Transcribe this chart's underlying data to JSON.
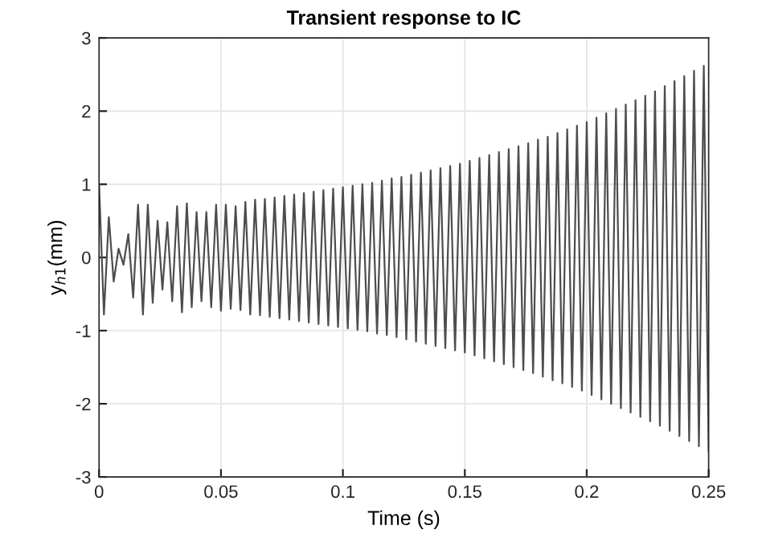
{
  "chart_data": {
    "type": "line",
    "title": "Transient response to IC",
    "xlabel": "Time (s)",
    "ylabel": "y$_{h1}$(mm)",
    "xlim": [
      0,
      0.25
    ],
    "ylim": [
      -3,
      3
    ],
    "xticks": [
      0,
      0.05,
      0.1,
      0.15,
      0.2,
      0.25
    ],
    "yticks": [
      -3,
      -2,
      -1,
      0,
      1,
      2,
      3
    ],
    "grid": true,
    "series": [
      {
        "color": "#4d4d4d",
        "x": [
          0,
          0.002,
          0.004,
          0.006,
          0.008,
          0.01,
          0.012,
          0.014,
          0.016,
          0.018,
          0.02,
          0.022,
          0.024,
          0.026,
          0.028,
          0.03,
          0.032,
          0.034,
          0.036,
          0.038,
          0.04,
          0.042,
          0.044,
          0.046,
          0.048,
          0.05,
          0.052,
          0.054,
          0.056,
          0.058,
          0.06,
          0.062,
          0.064,
          0.066,
          0.068,
          0.07,
          0.072,
          0.074,
          0.076,
          0.078,
          0.08,
          0.082,
          0.084,
          0.086,
          0.088,
          0.09,
          0.092,
          0.094,
          0.096,
          0.098,
          0.1,
          0.102,
          0.104,
          0.106,
          0.108,
          0.11,
          0.112,
          0.114,
          0.116,
          0.118,
          0.12,
          0.122,
          0.124,
          0.126,
          0.128,
          0.13,
          0.132,
          0.134,
          0.136,
          0.138,
          0.14,
          0.142,
          0.144,
          0.146,
          0.148,
          0.15,
          0.152,
          0.154,
          0.156,
          0.158,
          0.16,
          0.162,
          0.164,
          0.166,
          0.168,
          0.17,
          0.172,
          0.174,
          0.176,
          0.178,
          0.18,
          0.182,
          0.184,
          0.186,
          0.188,
          0.19,
          0.192,
          0.194,
          0.196,
          0.198,
          0.2,
          0.202,
          0.204,
          0.206,
          0.208,
          0.21,
          0.212,
          0.214,
          0.216,
          0.218,
          0.22,
          0.222,
          0.224,
          0.226,
          0.228,
          0.23,
          0.232,
          0.234,
          0.236,
          0.238,
          0.24,
          0.242,
          0.244,
          0.246,
          0.248,
          0.25
        ],
        "values": [
          1.0,
          -0.78,
          0.55,
          -0.33,
          0.12,
          -0.1,
          0.32,
          -0.55,
          0.72,
          -0.78,
          0.72,
          -0.62,
          0.5,
          -0.44,
          0.48,
          -0.6,
          0.7,
          -0.75,
          0.74,
          -0.68,
          0.62,
          -0.6,
          0.62,
          -0.68,
          0.72,
          -0.73,
          0.72,
          -0.7,
          0.7,
          -0.72,
          0.76,
          -0.78,
          0.79,
          -0.79,
          0.8,
          -0.81,
          0.82,
          -0.83,
          0.84,
          -0.85,
          0.86,
          -0.87,
          0.88,
          -0.89,
          0.9,
          -0.91,
          0.92,
          -0.93,
          0.94,
          -0.95,
          0.96,
          -0.97,
          0.98,
          -0.99,
          1.0,
          -1.01,
          1.02,
          -1.04,
          1.05,
          -1.06,
          1.08,
          -1.09,
          1.1,
          -1.12,
          1.13,
          -1.15,
          1.16,
          -1.18,
          1.19,
          -1.21,
          1.22,
          -1.24,
          1.25,
          -1.27,
          1.28,
          -1.3,
          1.32,
          -1.34,
          1.36,
          -1.38,
          1.4,
          -1.42,
          1.44,
          -1.46,
          1.48,
          -1.5,
          1.52,
          -1.54,
          1.56,
          -1.58,
          1.61,
          -1.63,
          1.65,
          -1.68,
          1.7,
          -1.72,
          1.75,
          -1.77,
          1.8,
          -1.82,
          1.85,
          -1.88,
          1.91,
          -1.94,
          1.97,
          -2.0,
          2.03,
          -2.06,
          2.09,
          -2.12,
          2.15,
          -2.18,
          2.21,
          -2.24,
          2.27,
          -2.3,
          2.34,
          -2.37,
          2.41,
          -2.44,
          2.48,
          -2.51,
          2.55,
          -2.58,
          2.62,
          -2.65
        ]
      }
    ]
  }
}
